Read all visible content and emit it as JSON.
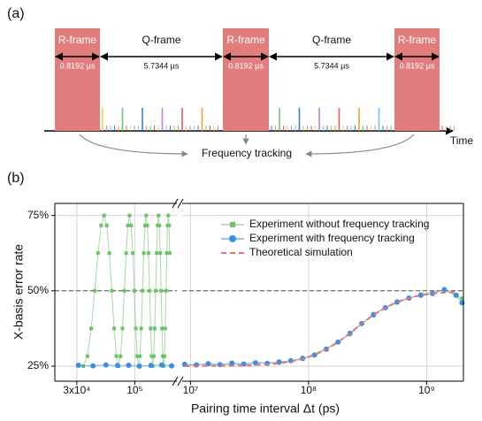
{
  "panel_a": {
    "label": "(a)",
    "frames": [
      {
        "name": "R-frame",
        "duration": "0.8192 µs"
      },
      {
        "name": "Q-frame",
        "duration": "5.7344 µs"
      },
      {
        "name": "R-frame",
        "duration": "0.8192 µs"
      },
      {
        "name": "Q-frame",
        "duration": "5.7344 µs"
      },
      {
        "name": "R-frame",
        "duration": "0.8192 µs"
      }
    ],
    "axis_label": "Time",
    "feedback_label": "Frequency tracking"
  },
  "chart_data": {
    "type": "line",
    "panel_label": "(b)",
    "x_label": "Pairing time interval Δt (ps)",
    "y_label": "X-basis error rate",
    "xscale": "log",
    "xlim": [
      19000,
      2050000000
    ],
    "xbreak": [
      240000,
      8500000
    ],
    "xticks": [
      {
        "value": 30000,
        "label": "3x10⁴"
      },
      {
        "value": 100000,
        "label": "10⁵"
      },
      {
        "value": 10000000,
        "label": "10⁷"
      },
      {
        "value": 100000000,
        "label": "10⁸"
      },
      {
        "value": 1000000000,
        "label": "10⁹"
      }
    ],
    "ylim": [
      20,
      79
    ],
    "yticks": [
      {
        "value": 25,
        "label": "25%"
      },
      {
        "value": 50,
        "label": "50%"
      },
      {
        "value": 75,
        "label": "75%"
      }
    ],
    "grid": true,
    "reference_line": 50,
    "legend": "upper right",
    "series": [
      {
        "name": "Experiment without frequency tracking",
        "color": "#6cc266",
        "marker": "square",
        "x": [
          34300,
          37383,
          40466,
          43549,
          46632,
          49715,
          52798,
          55881,
          58964,
          62047,
          65130,
          68213,
          71296,
          74379,
          77462,
          80545,
          83628,
          86711,
          89794,
          92877,
          95960,
          99043,
          102126,
          105209,
          108292,
          111375,
          114458,
          117541,
          120624,
          123707,
          126790,
          129873,
          132956,
          136039,
          139122,
          142205,
          145288,
          148371,
          151454,
          154537,
          157620,
          160703,
          163786,
          166869,
          169952,
          173035,
          176118,
          179201,
          182284,
          185367,
          188450,
          191533,
          194616,
          197699,
          200782,
          203865,
          206948,
          8910000,
          14130000,
          22390000,
          35480000,
          56230000,
          89130000,
          141300000,
          223900000,
          354800000,
          562300000,
          891300000,
          1413000000,
          1995000000
        ],
        "values": [
          25,
          28.3,
          37.5,
          50,
          62.5,
          71.7,
          75,
          71.7,
          62.5,
          50,
          37.5,
          28.3,
          25,
          28.3,
          37.5,
          50,
          62.5,
          71.7,
          75,
          71.7,
          62.5,
          50,
          37.5,
          28.3,
          25,
          28.3,
          37.5,
          50,
          62.5,
          71.7,
          75,
          71.7,
          62.5,
          50,
          37.5,
          28.3,
          25,
          28.3,
          37.5,
          50,
          62.5,
          71.7,
          75,
          71.7,
          62.5,
          50,
          37.5,
          28.3,
          25,
          28.3,
          37.5,
          50,
          62.5,
          71.7,
          75,
          71.7,
          62.5,
          25.3,
          25.7,
          25.4,
          26.2,
          26.0,
          27.3,
          30.9,
          35.5,
          42.4,
          46.0,
          48.9,
          50.2,
          47.5
        ]
      },
      {
        "name": "Experiment with frequency tracking",
        "color": "#3a8ee6",
        "marker": "circle",
        "x": [
          31000,
          42000,
          55000,
          70000,
          88000,
          110000,
          140000,
          175000,
          215000,
          8910000,
          11220000,
          14130000,
          17780000,
          22390000,
          28180000,
          35480000,
          44670000,
          56230000,
          70790000,
          89130000,
          112200000,
          141300000,
          177800000,
          223900000,
          281800000,
          354800000,
          446700000,
          562300000,
          707900000,
          891300000,
          1122000000,
          1413000000,
          1778000000,
          1995000000
        ],
        "values": [
          25.3,
          25.1,
          25.4,
          25.2,
          25.3,
          25.0,
          25.2,
          25.4,
          25.1,
          25.6,
          25.4,
          25.8,
          25.5,
          26.0,
          25.7,
          26.1,
          25.9,
          26.4,
          26.8,
          27.6,
          28.7,
          30.6,
          33.0,
          35.9,
          39.1,
          42.0,
          44.4,
          46.3,
          47.6,
          48.5,
          49.1,
          50.4,
          48.5,
          46.0
        ]
      },
      {
        "name": "Theoretical simulation",
        "color": "#f07070",
        "marker": "none",
        "dash": true,
        "x": [
          8910000,
          11220000,
          14130000,
          17780000,
          22390000,
          28180000,
          35480000,
          44670000,
          56230000,
          70790000,
          89130000,
          112200000,
          141300000,
          177800000,
          223900000,
          281800000,
          354800000,
          446700000,
          562300000,
          707900000,
          891300000,
          1122000000,
          1413000000,
          1778000000
        ],
        "values": [
          25.0,
          25.0,
          25.1,
          25.1,
          25.1,
          25.2,
          25.4,
          25.6,
          25.9,
          26.5,
          27.4,
          28.7,
          30.6,
          33.0,
          35.9,
          39.1,
          42.0,
          44.4,
          46.3,
          47.6,
          48.5,
          49.1,
          49.4,
          49.6
        ]
      }
    ]
  }
}
